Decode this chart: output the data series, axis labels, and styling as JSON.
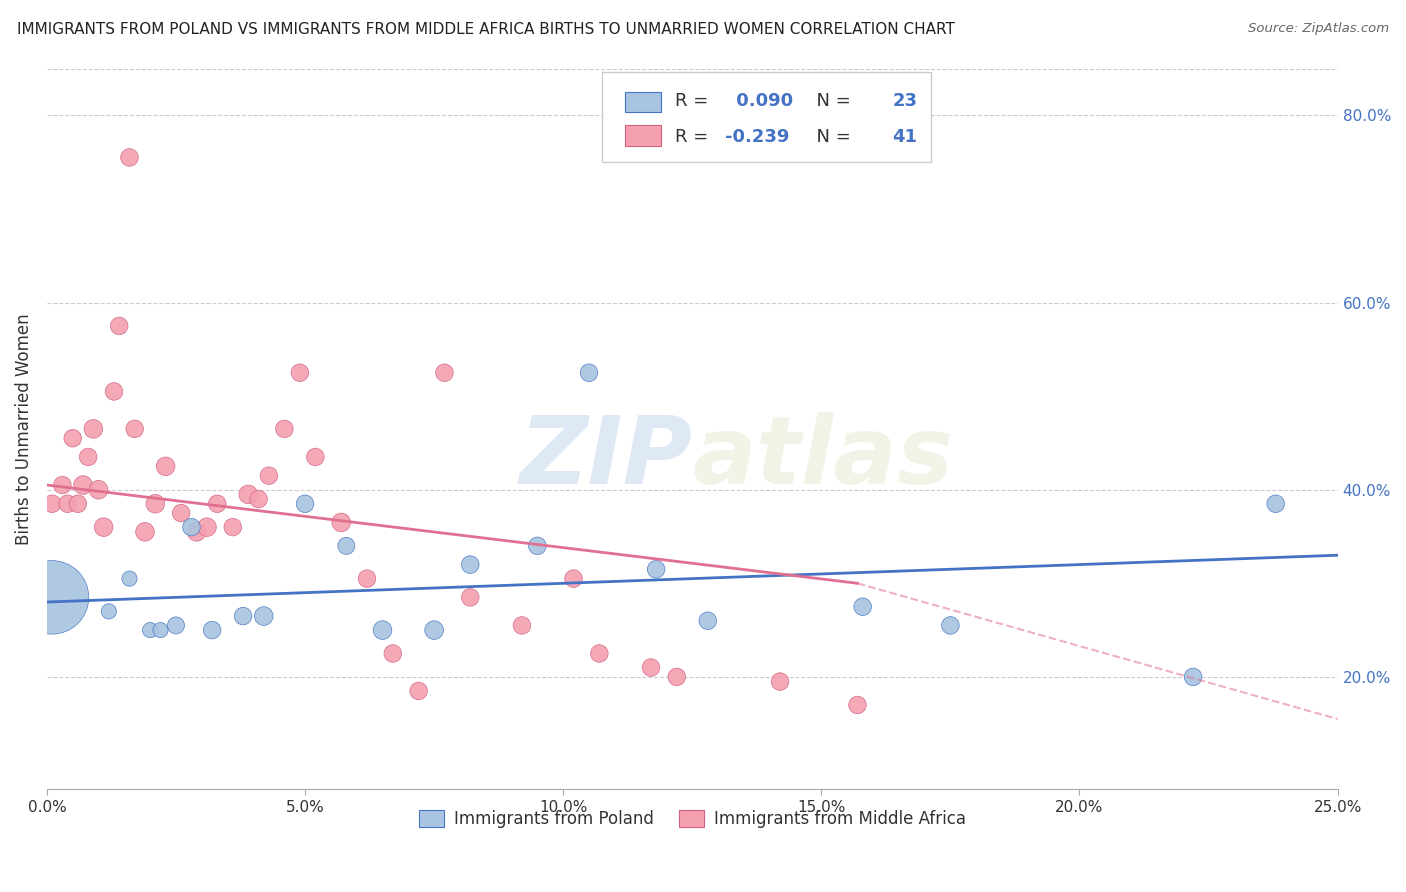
{
  "title": "IMMIGRANTS FROM POLAND VS IMMIGRANTS FROM MIDDLE AFRICA BIRTHS TO UNMARRIED WOMEN CORRELATION CHART",
  "source": "Source: ZipAtlas.com",
  "ylabel": "Births to Unmarried Women",
  "legend_label1": "Immigrants from Poland",
  "legend_label2": "Immigrants from Middle Africa",
  "R1": 0.09,
  "N1": 23,
  "R2": -0.239,
  "N2": 41,
  "xlim": [
    0.0,
    0.25
  ],
  "ylim": [
    0.08,
    0.85
  ],
  "xticks": [
    0.0,
    0.05,
    0.1,
    0.15,
    0.2,
    0.25
  ],
  "yticks_right": [
    0.2,
    0.4,
    0.6,
    0.8
  ],
  "color_poland": "#a8c4e0",
  "color_africa": "#f4a0b0",
  "line_color_poland": "#4472c4",
  "line_color_africa": "#e07090",
  "watermark_zip": "ZIP",
  "watermark_atlas": "atlas",
  "poland_x": [
    0.001,
    0.012,
    0.016,
    0.02,
    0.022,
    0.025,
    0.028,
    0.032,
    0.038,
    0.042,
    0.05,
    0.058,
    0.065,
    0.075,
    0.082,
    0.095,
    0.105,
    0.118,
    0.128,
    0.158,
    0.175,
    0.222,
    0.238
  ],
  "poland_y": [
    0.285,
    0.27,
    0.305,
    0.25,
    0.25,
    0.255,
    0.36,
    0.25,
    0.265,
    0.265,
    0.385,
    0.34,
    0.25,
    0.25,
    0.32,
    0.34,
    0.525,
    0.315,
    0.26,
    0.275,
    0.255,
    0.2,
    0.385
  ],
  "poland_size": [
    2800,
    120,
    120,
    120,
    120,
    150,
    160,
    160,
    160,
    180,
    160,
    150,
    180,
    180,
    160,
    160,
    160,
    160,
    160,
    160,
    160,
    160,
    160
  ],
  "africa_x": [
    0.001,
    0.003,
    0.004,
    0.005,
    0.006,
    0.007,
    0.008,
    0.009,
    0.01,
    0.011,
    0.013,
    0.014,
    0.016,
    0.017,
    0.019,
    0.021,
    0.023,
    0.026,
    0.029,
    0.031,
    0.033,
    0.036,
    0.039,
    0.041,
    0.043,
    0.046,
    0.049,
    0.052,
    0.057,
    0.062,
    0.067,
    0.072,
    0.077,
    0.082,
    0.092,
    0.102,
    0.107,
    0.117,
    0.122,
    0.142,
    0.157
  ],
  "africa_y": [
    0.385,
    0.405,
    0.385,
    0.455,
    0.385,
    0.405,
    0.435,
    0.465,
    0.4,
    0.36,
    0.505,
    0.575,
    0.755,
    0.465,
    0.355,
    0.385,
    0.425,
    0.375,
    0.355,
    0.36,
    0.385,
    0.36,
    0.395,
    0.39,
    0.415,
    0.465,
    0.525,
    0.435,
    0.365,
    0.305,
    0.225,
    0.185,
    0.525,
    0.285,
    0.255,
    0.305,
    0.225,
    0.21,
    0.2,
    0.195,
    0.17
  ],
  "africa_size": [
    160,
    160,
    160,
    160,
    160,
    180,
    160,
    180,
    180,
    180,
    160,
    160,
    160,
    160,
    180,
    180,
    180,
    160,
    180,
    180,
    160,
    160,
    180,
    160,
    160,
    160,
    160,
    160,
    180,
    160,
    160,
    160,
    160,
    160,
    160,
    160,
    160,
    160,
    160,
    160,
    160
  ],
  "trend_poland_y0": 0.28,
  "trend_poland_y1": 0.33,
  "trend_africa_y0": 0.405,
  "trend_africa_y1": 0.3,
  "trend_africa_solid_end_x": 0.157,
  "trend_africa_dashed_end_y": 0.155
}
